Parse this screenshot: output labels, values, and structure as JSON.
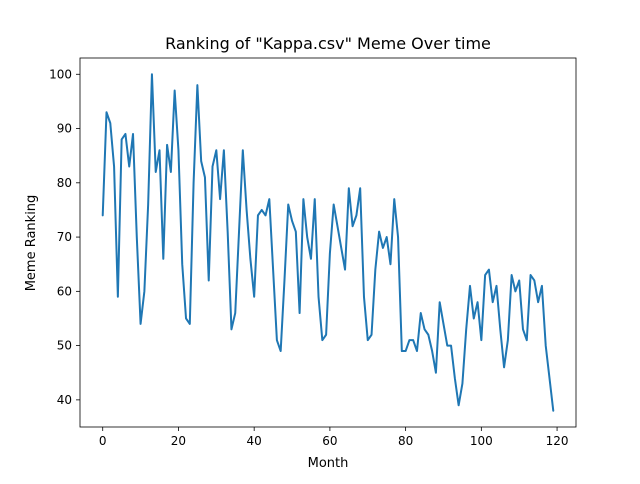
{
  "chart_data": {
    "type": "line",
    "title": "Ranking of \"Kappa.csv\" Meme Over time",
    "xlabel": "Month",
    "ylabel": "Meme Ranking",
    "xlim": [
      -6,
      125
    ],
    "ylim": [
      35,
      103
    ],
    "xticks": [
      0,
      20,
      40,
      60,
      80,
      100,
      120
    ],
    "yticks": [
      40,
      50,
      60,
      70,
      80,
      90,
      100
    ],
    "grid": false,
    "line_color": "#1f77b4",
    "series": [
      {
        "name": "",
        "x": [
          0,
          1,
          2,
          3,
          4,
          5,
          6,
          7,
          8,
          9,
          10,
          11,
          12,
          13,
          14,
          15,
          16,
          17,
          18,
          19,
          20,
          21,
          22,
          23,
          24,
          25,
          26,
          27,
          28,
          29,
          30,
          31,
          32,
          33,
          34,
          35,
          36,
          37,
          38,
          39,
          40,
          41,
          42,
          43,
          44,
          45,
          46,
          47,
          48,
          49,
          50,
          51,
          52,
          53,
          54,
          55,
          56,
          57,
          58,
          59,
          60,
          61,
          62,
          63,
          64,
          65,
          66,
          67,
          68,
          69,
          70,
          71,
          72,
          73,
          74,
          75,
          76,
          77,
          78,
          79,
          80,
          81,
          82,
          83,
          84,
          85,
          86,
          87,
          88,
          89,
          90,
          91,
          92,
          93,
          94,
          95,
          96,
          97,
          98,
          99,
          100,
          101,
          102,
          103,
          104,
          105,
          106,
          107,
          108,
          109,
          110,
          111,
          112,
          113,
          114,
          115,
          116,
          117,
          118,
          119
        ],
        "y": [
          74,
          93,
          91,
          83,
          59,
          88,
          89,
          83,
          89,
          70,
          54,
          60,
          76,
          100,
          82,
          86,
          66,
          87,
          82,
          97,
          86,
          65,
          55,
          54,
          80,
          98,
          84,
          81,
          62,
          83,
          86,
          77,
          86,
          71,
          53,
          56,
          71,
          86,
          75,
          66,
          59,
          74,
          75,
          74,
          77,
          64,
          51,
          49,
          62,
          76,
          73,
          71,
          56,
          77,
          70,
          66,
          77,
          59,
          51,
          52,
          67,
          76,
          72,
          68,
          64,
          79,
          72,
          74,
          79,
          59,
          51,
          52,
          64,
          71,
          68,
          70,
          65,
          77,
          70,
          49,
          49,
          51,
          51,
          49,
          56,
          53,
          52,
          49,
          45,
          58,
          54,
          50,
          50,
          44,
          39,
          43,
          53,
          61,
          55,
          58,
          51,
          63,
          64,
          58,
          61,
          53,
          46,
          51,
          63,
          60,
          62,
          53,
          51,
          63,
          62,
          58,
          61,
          50,
          44,
          38
        ]
      }
    ]
  }
}
